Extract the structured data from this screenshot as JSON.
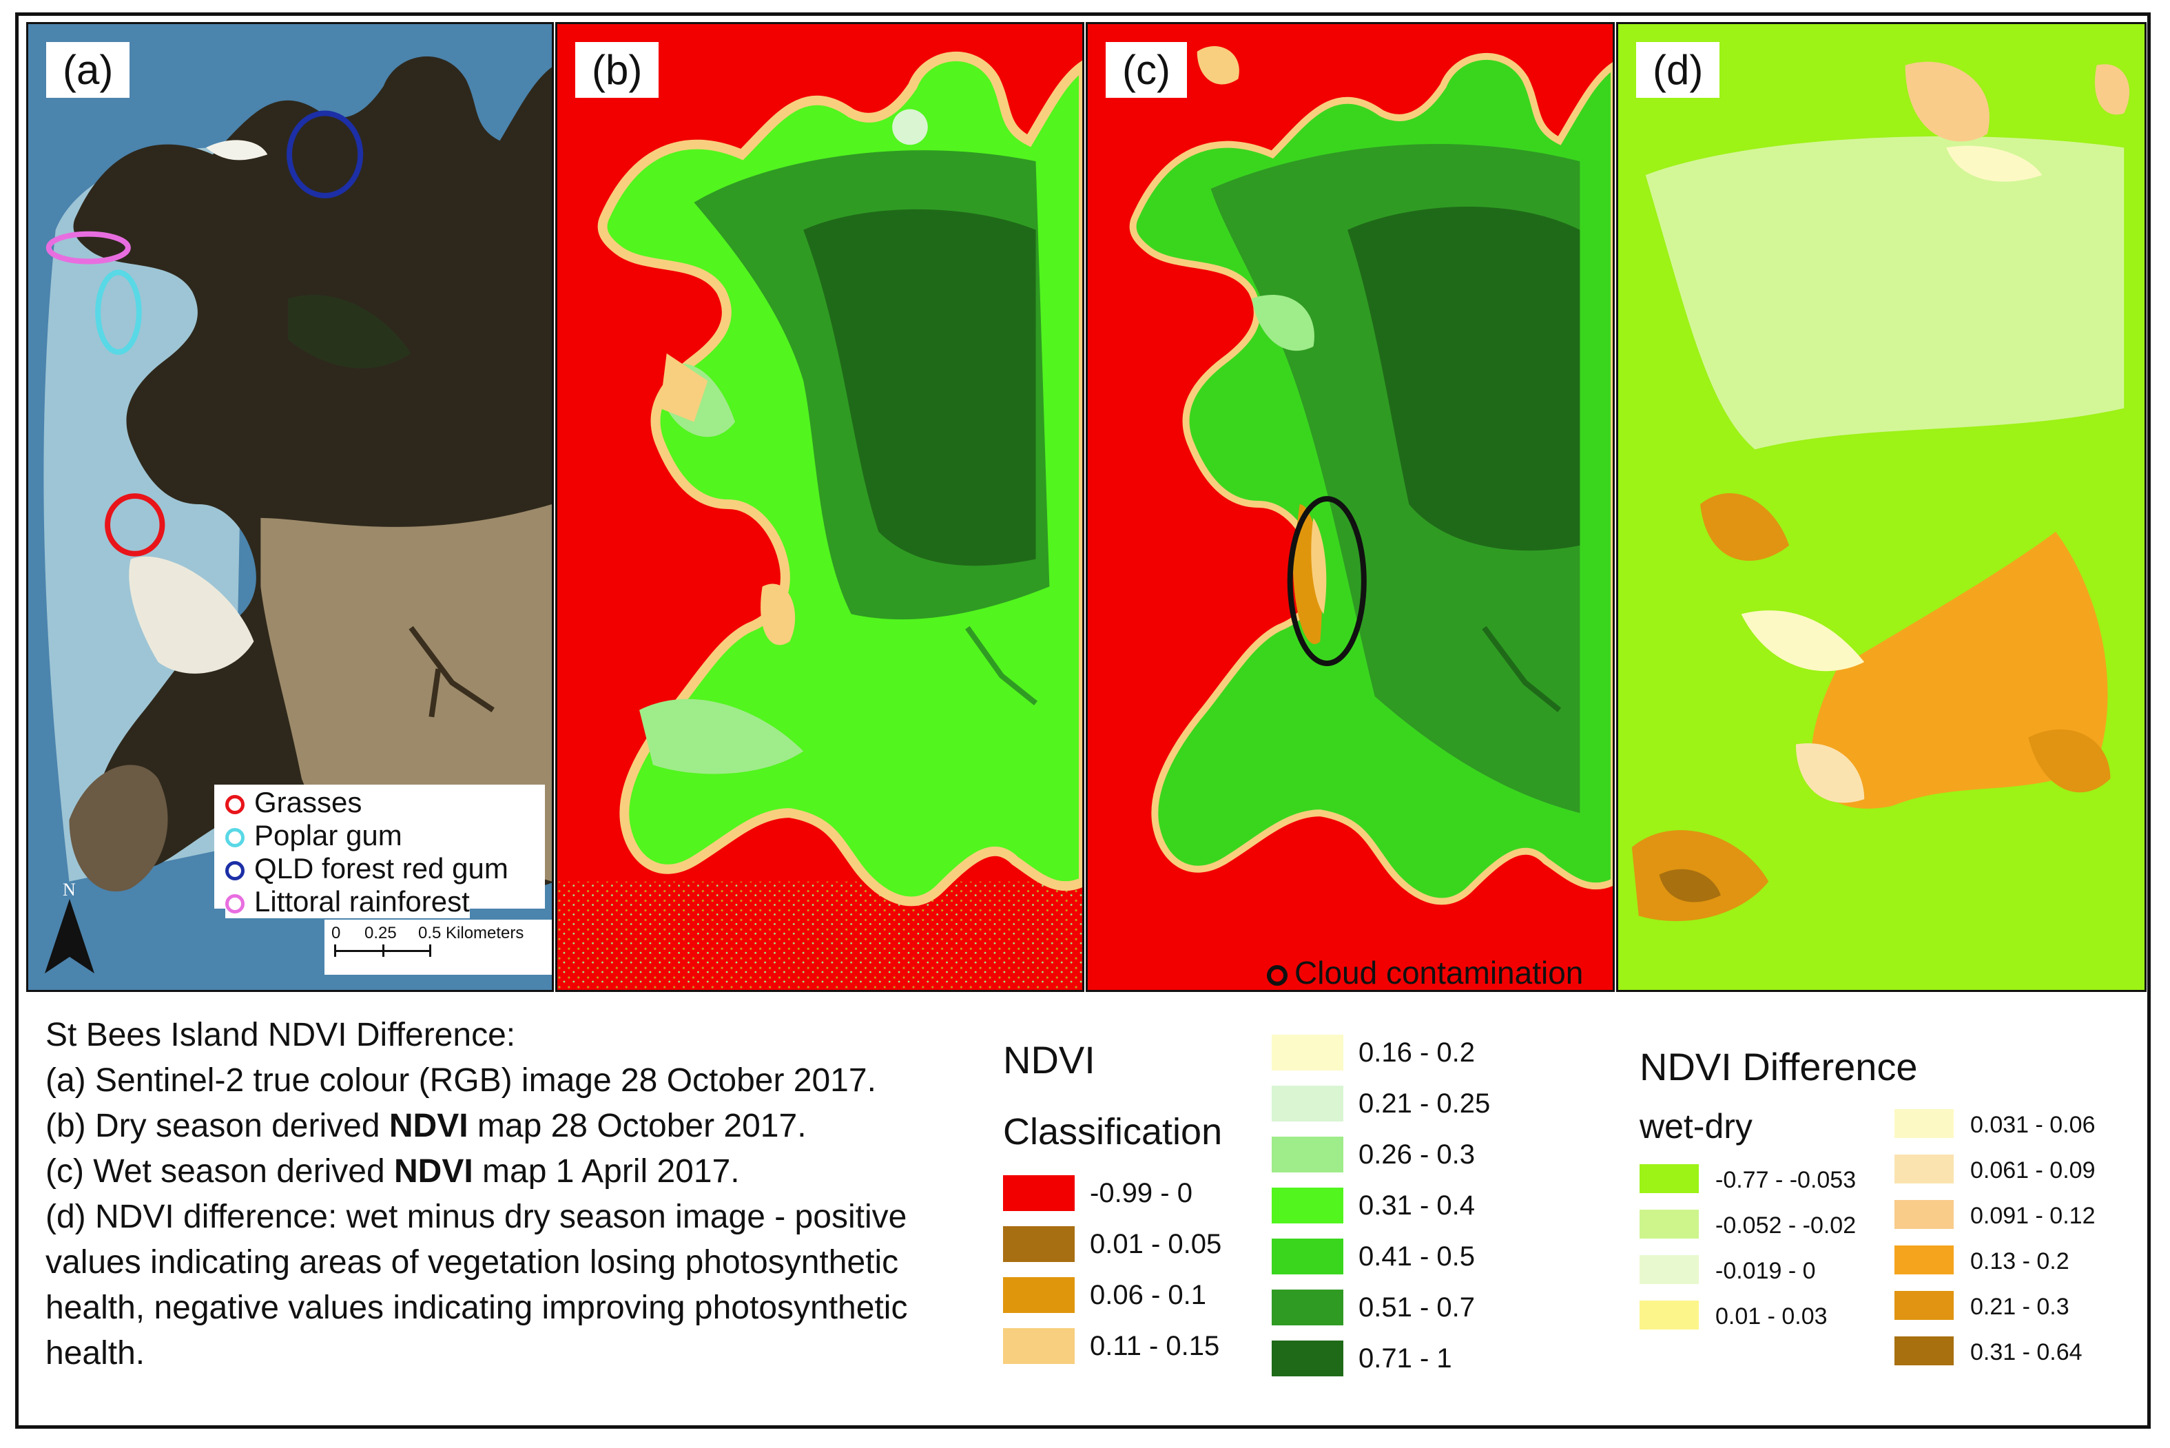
{
  "panels": [
    {
      "id": "a",
      "label": "(a)"
    },
    {
      "id": "b",
      "label": "(b)"
    },
    {
      "id": "c",
      "label": "(c)"
    },
    {
      "id": "d",
      "label": "(d)"
    }
  ],
  "site_legend": {
    "items": [
      {
        "label": "Grasses",
        "color": "#e8141a"
      },
      {
        "label": "Poplar gum",
        "color": "#59d8e6"
      },
      {
        "label": "QLD forest red gum",
        "color": "#1c2fa6"
      },
      {
        "label": "Littoral rainforest",
        "color": "#e86ee0"
      }
    ]
  },
  "scale_bar": {
    "ticks": [
      "0",
      "0.25",
      "0.5 Kilometers"
    ]
  },
  "north_arrow": {
    "label": "N"
  },
  "cloud_note": {
    "label": "Cloud contamination"
  },
  "caption": {
    "line1": "St Bees Island NDVI Difference:",
    "line2": "(a) Sentinel-2 true colour (RGB) image 28 October 2017.",
    "line3_pre": "(b) Dry season derived ",
    "line3_bold": "NDVI",
    "line3_post": " map 28 October 2017.",
    "line4_pre": "(c) Wet season derived ",
    "line4_bold": "NDVI",
    "line4_post": " map 1 April 2017.",
    "line5": "(d) NDVI difference: wet minus dry season image - positive values indicating areas of vegetation losing photosynthetic health, negative values indicating improving photosynthetic health."
  },
  "ndvi_legend": {
    "title": "NDVI",
    "subtitle": "Classification",
    "classes": [
      {
        "label": "-0.99 - 0",
        "color": "#f20000"
      },
      {
        "label": "0.01 - 0.05",
        "color": "#a86e12"
      },
      {
        "label": "0.06 - 0.1",
        "color": "#e0960c"
      },
      {
        "label": "0.11 - 0.15",
        "color": "#f8cf7e"
      },
      {
        "label": "0.16 - 0.2",
        "color": "#fdfbc8"
      },
      {
        "label": "0.21 - 0.25",
        "color": "#d9f5d2"
      },
      {
        "label": "0.26 - 0.3",
        "color": "#9fec8a"
      },
      {
        "label": "0.31 - 0.4",
        "color": "#52f51e"
      },
      {
        "label": "0.41 - 0.5",
        "color": "#3ad61e"
      },
      {
        "label": "0.51 - 0.7",
        "color": "#2f9b23"
      },
      {
        "label": "0.71 - 1",
        "color": "#1f6a18"
      }
    ]
  },
  "diff_legend": {
    "title": "NDVI Difference",
    "subtitle": "wet-dry",
    "classes": [
      {
        "label": "-0.77 - -0.053",
        "color": "#9df216"
      },
      {
        "label": "-0.052 - -0.02",
        "color": "#cdf58c"
      },
      {
        "label": "-0.019 - 0",
        "color": "#e9f9cf"
      },
      {
        "label": "0.01 - 0.03",
        "color": "#fcf58a"
      },
      {
        "label": "0.031 - 0.06",
        "color": "#fdf9c4"
      },
      {
        "label": "0.061 - 0.09",
        "color": "#fbe3b0"
      },
      {
        "label": "0.091 - 0.12",
        "color": "#f9cc8a"
      },
      {
        "label": "0.13 - 0.2",
        "color": "#f5a41e"
      },
      {
        "label": "0.21 - 0.3",
        "color": "#e09411"
      },
      {
        "label": "0.31 - 0.64",
        "color": "#a8700f"
      }
    ]
  }
}
